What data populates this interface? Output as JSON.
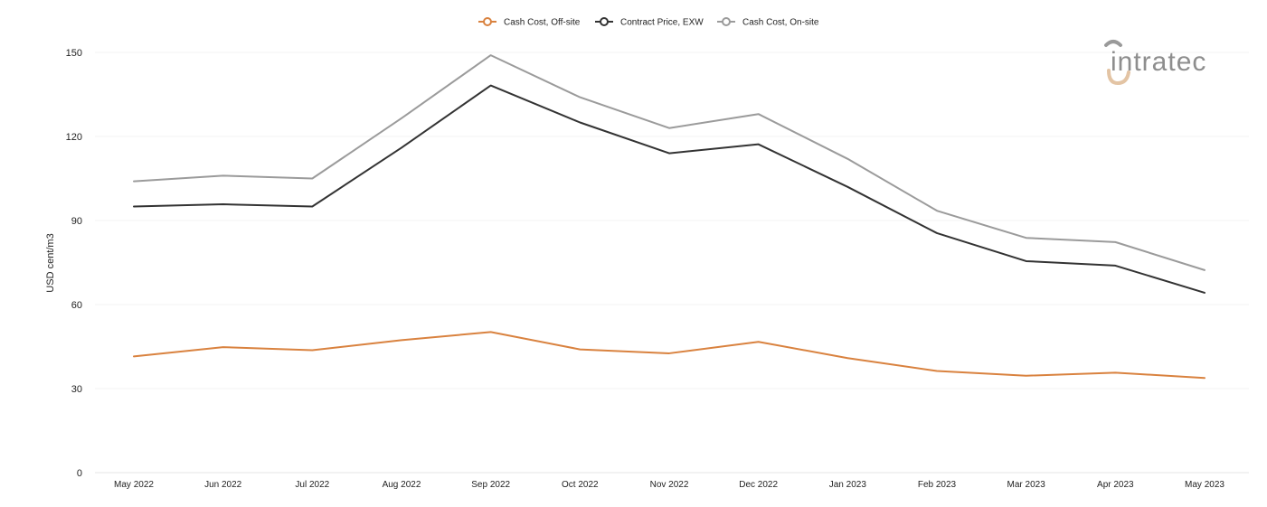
{
  "chart_data": {
    "type": "line",
    "ylabel": "USD cent/m3",
    "ylim": [
      0,
      150
    ],
    "yticks": [
      0,
      30,
      60,
      90,
      120,
      150
    ],
    "grid": true,
    "legend_position": "top-center",
    "categories": [
      "May 2022",
      "Jun 2022",
      "Jul 2022",
      "Aug 2022",
      "Sep 2022",
      "Oct 2022",
      "Nov 2022",
      "Dec 2022",
      "Jan 2023",
      "Feb 2023",
      "Mar 2023",
      "Apr 2023",
      "May 2023"
    ],
    "series": [
      {
        "name": "Cash Cost, Off-site",
        "color": "#d9823f",
        "values": [
          41.5,
          44.8,
          43.7,
          47.3,
          50.2,
          44.0,
          42.6,
          46.7,
          40.9,
          36.3,
          34.6,
          35.7,
          33.8
        ]
      },
      {
        "name": "Contract Price, EXW",
        "color": "#333333",
        "values": [
          95.0,
          95.8,
          95.0,
          116.0,
          138.2,
          125.0,
          114.0,
          117.2,
          102.0,
          85.5,
          75.5,
          73.9,
          64.2
        ]
      },
      {
        "name": "Cash Cost, On-site",
        "color": "#9b9b9b",
        "values": [
          104.0,
          106.0,
          105.0,
          126.5,
          149.0,
          134.0,
          123.0,
          128.0,
          112.0,
          93.5,
          83.8,
          82.3,
          72.3
        ]
      }
    ]
  },
  "logo": {
    "text": "intratec",
    "icon": "intratec-logo-icon"
  }
}
